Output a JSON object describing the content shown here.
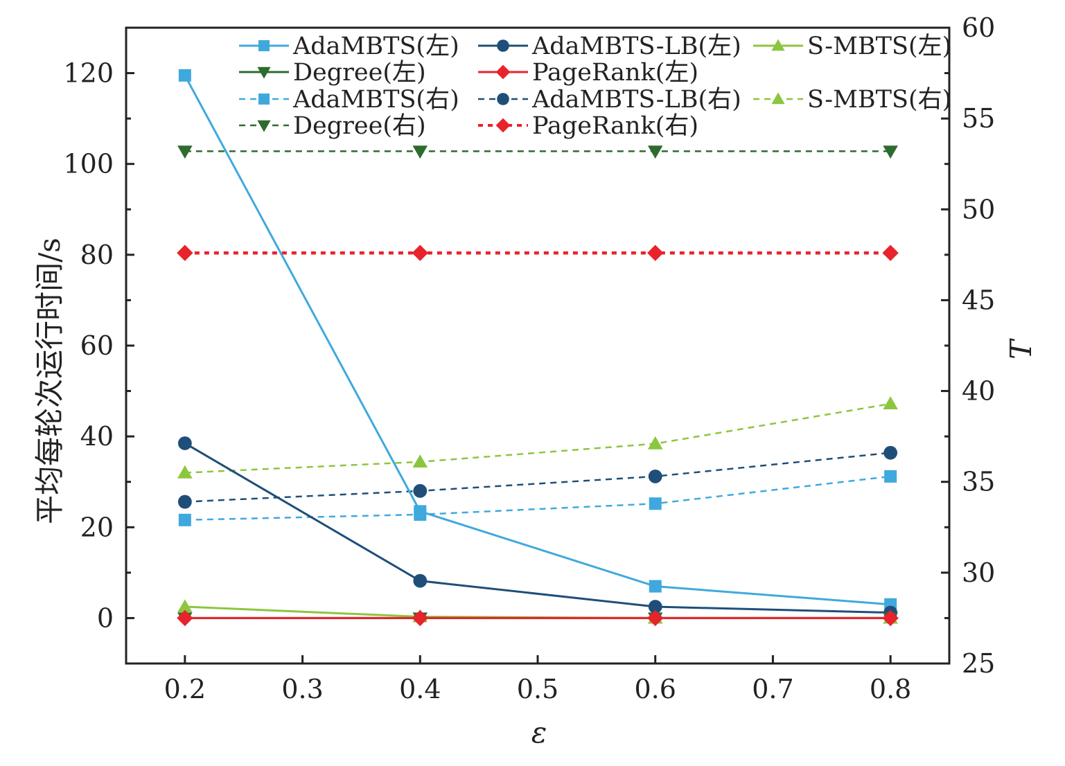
{
  "chart_data": {
    "type": "line",
    "title": "",
    "xlabel": "ε",
    "ylabel_left": "平均每轮次运行时间/s",
    "ylabel_right": "T",
    "x": [
      0.2,
      0.4,
      0.6,
      0.8
    ],
    "xlim": [
      0.15,
      0.85
    ],
    "xticks": [
      "0.2",
      "0.3",
      "0.4",
      "0.5",
      "0.6",
      "0.7",
      "0.8"
    ],
    "ylim_left": [
      -10,
      130
    ],
    "yticks_left": [
      "0",
      "20",
      "40",
      "60",
      "80",
      "100",
      "120"
    ],
    "ylim_right": [
      25,
      60
    ],
    "yticks_right": [
      "25",
      "30",
      "35",
      "40",
      "45",
      "50",
      "55",
      "60"
    ],
    "grid": false,
    "legend_position": "top",
    "series": [
      {
        "name": "AdaMBTS(左)",
        "axis": "left",
        "style": "solid",
        "marker": "square",
        "color": "#3fa9dd",
        "values": [
          119.5,
          23.5,
          7.0,
          3.0
        ]
      },
      {
        "name": "AdaMBTS-LB(左)",
        "axis": "left",
        "style": "solid",
        "marker": "circle",
        "color": "#1f4e79",
        "values": [
          38.5,
          8.2,
          2.5,
          1.2
        ]
      },
      {
        "name": "S-MBTS(左)",
        "axis": "left",
        "style": "solid",
        "marker": "triangle-up",
        "color": "#8cc63f",
        "values": [
          2.5,
          0.3,
          0.0,
          0.0
        ]
      },
      {
        "name": "Degree(左)",
        "axis": "left",
        "style": "solid",
        "marker": "triangle-down",
        "color": "#2e6b2e",
        "values": [
          0.0,
          0.0,
          0.0,
          0.0
        ]
      },
      {
        "name": "PageRank(左)",
        "axis": "left",
        "style": "solid",
        "marker": "diamond",
        "color": "#e8232c",
        "values": [
          0.0,
          0.0,
          0.0,
          0.0
        ]
      },
      {
        "name": "AdaMBTS(右)",
        "axis": "right",
        "style": "dashed",
        "marker": "square",
        "color": "#3fa9dd",
        "values": [
          32.9,
          33.2,
          33.8,
          35.3
        ]
      },
      {
        "name": "AdaMBTS-LB(右)",
        "axis": "right",
        "style": "dashed",
        "marker": "circle",
        "color": "#1f4e79",
        "values": [
          33.9,
          34.5,
          35.3,
          36.6
        ]
      },
      {
        "name": "S-MBTS(右)",
        "axis": "right",
        "style": "dashed",
        "marker": "triangle-up",
        "color": "#8cc63f",
        "values": [
          35.5,
          36.1,
          37.1,
          39.3
        ]
      },
      {
        "name": "Degree(右)",
        "axis": "right",
        "style": "dashed",
        "marker": "triangle-down",
        "color": "#2e6b2e",
        "values": [
          53.2,
          53.2,
          53.2,
          53.2
        ]
      },
      {
        "name": "PageRank(右)",
        "axis": "right",
        "style": "dashed",
        "marker": "diamond",
        "color": "#e8232c",
        "values": [
          47.6,
          47.6,
          47.6,
          47.6
        ]
      }
    ]
  }
}
